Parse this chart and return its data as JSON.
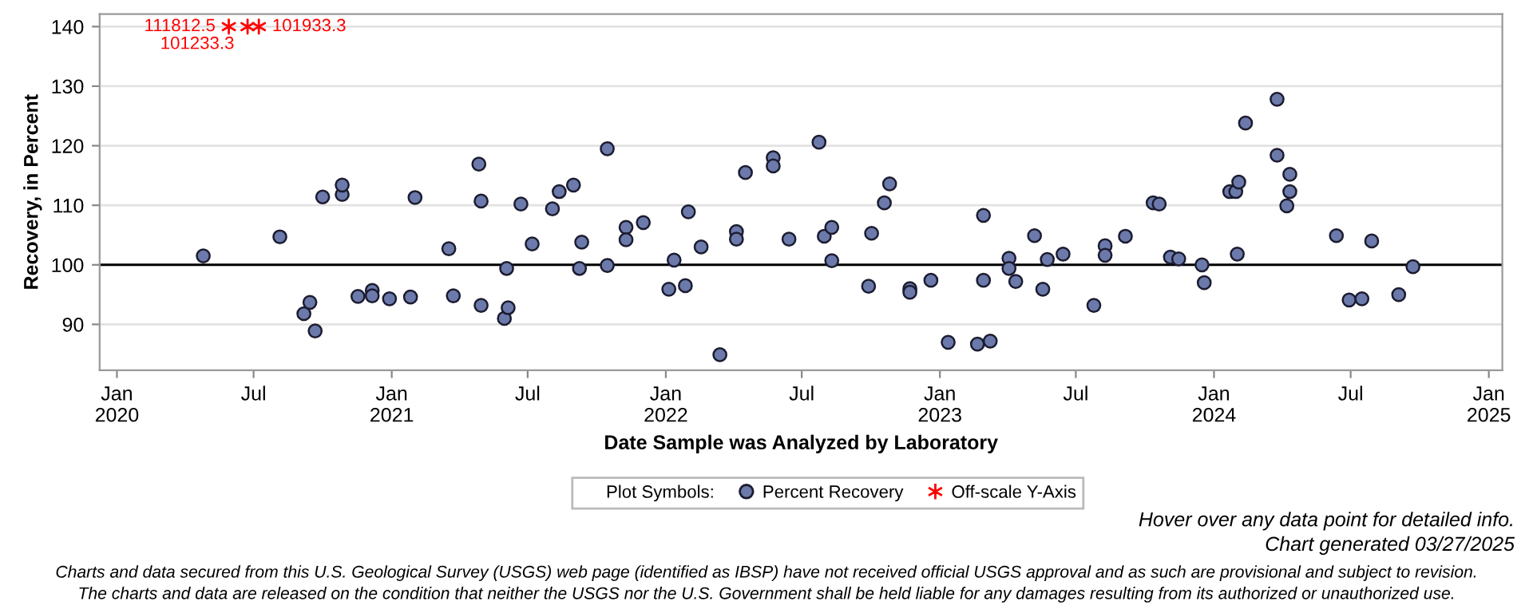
{
  "chart_data": {
    "type": "scatter",
    "xlabel": "Date Sample was Analyzed by Laboratory",
    "ylabel": "Recovery, in Percent",
    "legend_title": "Plot Symbols:",
    "legend": "bottom",
    "grid": "y",
    "xlim": [
      "2019-12-09",
      "2025-01-19"
    ],
    "ylim": [
      82.3,
      142.1
    ],
    "yticks": [
      90,
      100,
      110,
      120,
      130,
      140
    ],
    "xticks": [
      {
        "value": "2020-01-01",
        "label": "Jan\n2020"
      },
      {
        "value": "2020-07-01",
        "label": "Jul"
      },
      {
        "value": "2021-01-01",
        "label": "Jan\n2021"
      },
      {
        "value": "2021-07-01",
        "label": "Jul"
      },
      {
        "value": "2022-01-01",
        "label": "Jan\n2022"
      },
      {
        "value": "2022-07-01",
        "label": "Jul"
      },
      {
        "value": "2023-01-01",
        "label": "Jan\n2023"
      },
      {
        "value": "2023-07-01",
        "label": "Jul"
      },
      {
        "value": "2024-01-01",
        "label": "Jan\n2024"
      },
      {
        "value": "2024-07-01",
        "label": "Jul"
      },
      {
        "value": "2025-01-01",
        "label": "Jan\n2025"
      }
    ],
    "ref_lines": [
      {
        "axis": "y",
        "value": 100,
        "color": "#000000",
        "line_style": "solid"
      }
    ],
    "series": [
      {
        "name": "Percent Recovery",
        "color": "#6b7aab",
        "marker": "circle",
        "x": [
          "2020-04-25",
          "2020-08-05",
          "2020-09-06",
          "2020-09-14",
          "2020-09-21",
          "2020-10-01",
          "2020-10-27",
          "2020-10-27",
          "2020-11-17",
          "2020-12-06",
          "2020-12-06",
          "2020-12-29",
          "2021-01-26",
          "2021-02-01",
          "2021-03-18",
          "2021-03-24",
          "2021-04-27",
          "2021-04-30",
          "2021-04-30",
          "2021-05-31",
          "2021-06-05",
          "2021-06-03",
          "2021-06-22",
          "2021-07-07",
          "2021-08-03",
          "2021-08-12",
          "2021-08-31",
          "2021-09-08",
          "2021-09-11",
          "2021-10-15",
          "2021-10-15",
          "2021-11-09",
          "2021-11-09",
          "2021-12-02",
          "2022-01-05",
          "2022-01-12",
          "2022-01-27",
          "2022-01-31",
          "2022-02-17",
          "2022-03-14",
          "2022-04-05",
          "2022-04-05",
          "2022-04-17",
          "2022-05-24",
          "2022-05-24",
          "2022-06-14",
          "2022-07-24",
          "2022-07-31",
          "2022-08-10",
          "2022-08-10",
          "2022-09-28",
          "2022-10-02",
          "2022-10-19",
          "2022-10-26",
          "2022-11-22",
          "2022-11-22",
          "2022-12-20",
          "2023-01-12",
          "2023-02-20",
          "2023-02-28",
          "2023-02-28",
          "2023-03-09",
          "2023-04-03",
          "2023-04-03",
          "2023-04-12",
          "2023-05-07",
          "2023-05-18",
          "2023-05-24",
          "2023-06-14",
          "2023-07-25",
          "2023-08-09",
          "2023-08-09",
          "2023-09-05",
          "2023-10-12",
          "2023-10-20",
          "2023-11-04",
          "2023-11-15",
          "2023-12-16",
          "2023-12-19",
          "2024-01-22",
          "2024-01-30",
          "2024-02-01",
          "2024-02-03",
          "2024-02-12",
          "2024-03-25",
          "2024-03-25",
          "2024-04-07",
          "2024-04-11",
          "2024-04-11",
          "2024-06-12",
          "2024-06-29",
          "2024-07-16",
          "2024-07-29",
          "2024-09-03",
          "2024-09-22"
        ],
        "values": [
          101.5,
          104.7,
          91.8,
          93.7,
          88.9,
          111.4,
          111.8,
          113.4,
          94.7,
          95.7,
          94.8,
          94.3,
          94.6,
          111.3,
          102.7,
          94.8,
          116.9,
          110.7,
          93.2,
          91.0,
          92.8,
          99.4,
          110.2,
          103.5,
          109.4,
          112.3,
          113.4,
          99.4,
          103.8,
          119.5,
          99.9,
          106.3,
          104.2,
          107.1,
          95.9,
          100.8,
          96.5,
          108.9,
          103.0,
          84.9,
          105.6,
          104.3,
          115.5,
          118.0,
          116.6,
          104.3,
          120.6,
          104.8,
          106.3,
          100.7,
          96.4,
          105.3,
          110.4,
          113.6,
          96.0,
          95.4,
          97.4,
          87.0,
          86.7,
          108.3,
          97.4,
          87.2,
          101.1,
          99.4,
          97.2,
          104.9,
          95.9,
          100.9,
          101.8,
          93.2,
          103.2,
          101.6,
          104.8,
          110.4,
          110.2,
          101.3,
          101.0,
          100.0,
          97.0,
          112.3,
          112.3,
          101.8,
          113.9,
          123.8,
          127.8,
          118.4,
          109.9,
          115.2,
          112.3,
          104.9,
          94.1,
          94.3,
          104.0,
          95.0,
          99.7
        ]
      },
      {
        "name": "Off-scale Y-Axis",
        "color": "#ff0000",
        "marker": "cross",
        "x": [
          "2020-05-29",
          "2020-06-23",
          "2020-07-08"
        ],
        "values": [
          140,
          140,
          140
        ]
      }
    ],
    "annotations": [
      {
        "text": "111812.5",
        "x": "2020-05-29",
        "y": 140
      },
      {
        "text": "101233.3",
        "x": "2020-06-23",
        "y": 140
      },
      {
        "text": "101933.3",
        "x": "2020-07-08",
        "y": 140
      },
      "Hover over any data point for detailed info.",
      "Chart generated 03/27/2025",
      "Charts and data secured from this U.S. Geological Survey (USGS) web page (identified as IBSP) have not received official USGS approval and as such are provisional and subject to revision.",
      "The charts and data are released on the condition that neither the USGS nor the U.S. Government shall be held liable for any damages resulting from its authorized or unauthorized use."
    ]
  }
}
